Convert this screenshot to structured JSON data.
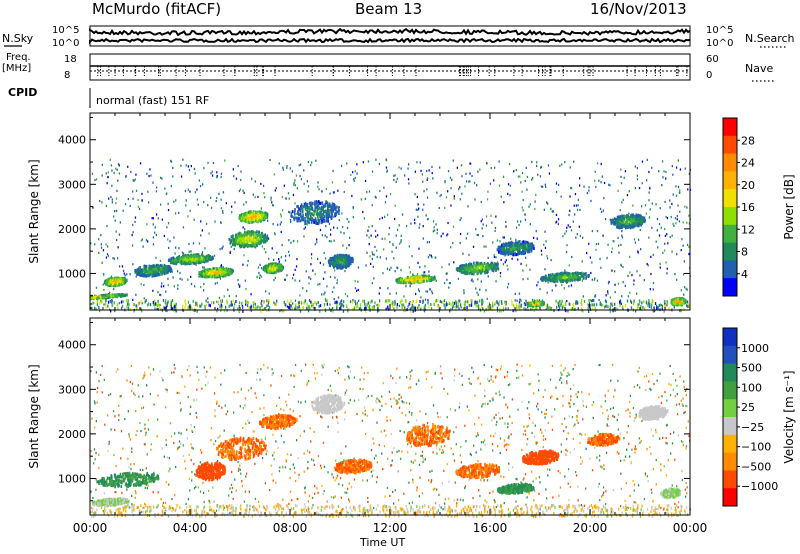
{
  "header": {
    "station": "McMurdo (fitACF)",
    "beam": "Beam 13",
    "date": "16/Nov/2013"
  },
  "top_panels": {
    "nsky_label": "N.Sky",
    "nsearch_label": "N.Search",
    "nsky_ticks": [
      "10^5",
      "10^0"
    ],
    "nsearch_ticks": [
      "10^5",
      "10^0"
    ],
    "freq_label_1": "Freq.",
    "freq_label_2": "[MHz]",
    "freq_ticks": [
      "18",
      "8"
    ],
    "nave_label": "Nave",
    "nave_ticks": [
      "60",
      "0"
    ],
    "cpid_label": "CPID",
    "cpid_value": "normal (fast) 151 RF"
  },
  "chart_data": [
    {
      "type": "heatmap",
      "name": "power",
      "ylabel": "Slant Range [km]",
      "ylim": [
        180,
        4600
      ],
      "yticks": [
        1000,
        2000,
        3000,
        4000
      ],
      "xlim": [
        0,
        24
      ],
      "colorbar_label": "Power [dB]",
      "colorbar_ticks": [
        "28",
        "24",
        "20",
        "16",
        "12",
        "8",
        "4"
      ],
      "colorbar_colors": [
        "#ff0000",
        "#ff4a00",
        "#ff8c00",
        "#ffb000",
        "#f0e000",
        "#8ee000",
        "#40b040",
        "#208a5a",
        "#2060b0",
        "#0000ff"
      ],
      "blobs": [
        {
          "t": 0.2,
          "r": 500,
          "dt": 2.6,
          "dr": 60,
          "v": 20
        },
        {
          "t": 1.0,
          "r": 850,
          "dt": 0.9,
          "dr": 180,
          "v": 26
        },
        {
          "t": 2.5,
          "r": 1100,
          "dt": 1.5,
          "dr": 250,
          "v": 12
        },
        {
          "t": 4.0,
          "r": 1350,
          "dt": 1.8,
          "dr": 200,
          "v": 18
        },
        {
          "t": 5.0,
          "r": 1050,
          "dt": 1.4,
          "dr": 200,
          "v": 24
        },
        {
          "t": 6.3,
          "r": 1800,
          "dt": 1.6,
          "dr": 350,
          "v": 20
        },
        {
          "t": 6.5,
          "r": 2300,
          "dt": 1.2,
          "dr": 250,
          "v": 26
        },
        {
          "t": 7.3,
          "r": 1150,
          "dt": 0.8,
          "dr": 200,
          "v": 22
        },
        {
          "t": 9.0,
          "r": 2400,
          "dt": 2.0,
          "dr": 500,
          "v": 8
        },
        {
          "t": 10.0,
          "r": 1300,
          "dt": 1.0,
          "dr": 300,
          "v": 10
        },
        {
          "t": 13.0,
          "r": 900,
          "dt": 1.6,
          "dr": 150,
          "v": 26
        },
        {
          "t": 15.5,
          "r": 1150,
          "dt": 1.8,
          "dr": 250,
          "v": 16
        },
        {
          "t": 17.0,
          "r": 1600,
          "dt": 1.5,
          "dr": 300,
          "v": 10
        },
        {
          "t": 19.0,
          "r": 950,
          "dt": 2.0,
          "dr": 200,
          "v": 14
        },
        {
          "t": 21.5,
          "r": 2200,
          "dt": 1.4,
          "dr": 300,
          "v": 12
        },
        {
          "t": 23.5,
          "r": 400,
          "dt": 0.6,
          "dr": 150,
          "v": 28
        },
        {
          "t": 17.8,
          "r": 350,
          "dt": 0.7,
          "dr": 80,
          "v": 26
        }
      ]
    },
    {
      "type": "heatmap",
      "name": "velocity",
      "ylabel": "Slant Range [km]",
      "ylim": [
        180,
        4600
      ],
      "yticks": [
        1000,
        2000,
        3000,
        4000
      ],
      "xlim": [
        0,
        24
      ],
      "xlabel": "Time UT",
      "xticks": [
        "00:00",
        "04:00",
        "08:00",
        "12:00",
        "16:00",
        "20:00",
        "00:00"
      ],
      "colorbar_label": "Velocity [m s⁻¹]",
      "colorbar_ticks": [
        "1000",
        "500",
        "100",
        "25",
        "−25",
        "−100",
        "−500",
        "−1000"
      ],
      "colorbar_colors": [
        "#1030c0",
        "#2050c0",
        "#208a5a",
        "#40a040",
        "#70d040",
        "#c8c8c8",
        "#ffb000",
        "#ff8c00",
        "#ff4a00",
        "#ff0000"
      ],
      "blobs": [
        {
          "t": 1.5,
          "r": 1000,
          "dt": 2.5,
          "dr": 300,
          "v": 100
        },
        {
          "t": 0.8,
          "r": 500,
          "dt": 1.5,
          "dr": 150,
          "v": 25
        },
        {
          "t": 6.0,
          "r": 1700,
          "dt": 2.0,
          "dr": 500,
          "v": -100
        },
        {
          "t": 4.8,
          "r": 1200,
          "dt": 1.2,
          "dr": 400,
          "v": -300
        },
        {
          "t": 7.5,
          "r": 2300,
          "dt": 1.5,
          "dr": 300,
          "v": -100
        },
        {
          "t": 9.5,
          "r": 2700,
          "dt": 1.3,
          "dr": 400,
          "v": 20
        },
        {
          "t": 10.5,
          "r": 1300,
          "dt": 1.5,
          "dr": 300,
          "v": -100
        },
        {
          "t": 13.5,
          "r": 2000,
          "dt": 1.8,
          "dr": 500,
          "v": -100
        },
        {
          "t": 15.5,
          "r": 1200,
          "dt": 1.8,
          "dr": 300,
          "v": -100
        },
        {
          "t": 18.0,
          "r": 1500,
          "dt": 1.5,
          "dr": 300,
          "v": -200
        },
        {
          "t": 20.5,
          "r": 1900,
          "dt": 1.3,
          "dr": 250,
          "v": -100
        },
        {
          "t": 22.5,
          "r": 2500,
          "dt": 1.2,
          "dr": 300,
          "v": 20
        },
        {
          "t": 23.2,
          "r": 700,
          "dt": 0.8,
          "dr": 200,
          "v": 25
        },
        {
          "t": 17.0,
          "r": 800,
          "dt": 1.5,
          "dr": 200,
          "v": 100
        }
      ]
    }
  ]
}
